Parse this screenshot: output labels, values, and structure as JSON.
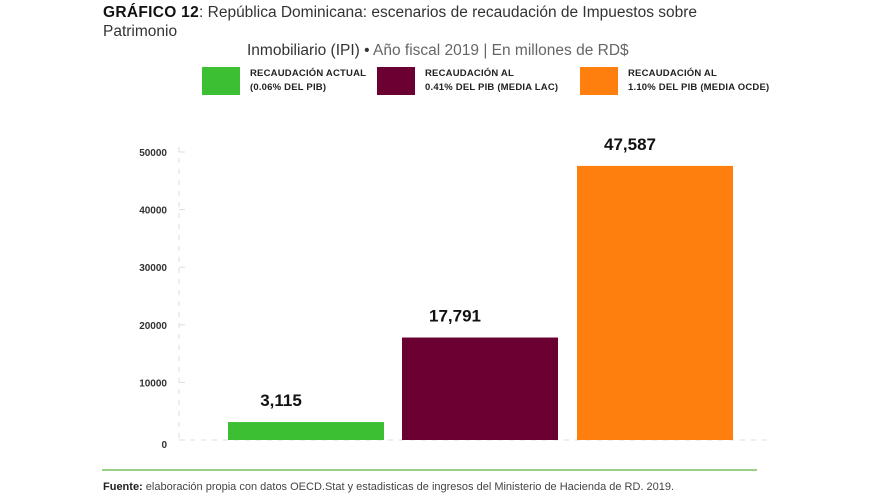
{
  "header": {
    "label": "GRÁFICO 12",
    "title_part1": ": República Dominicana: escenarios de recaudación de Impuestos sobre Patrimonio",
    "title_part2": "Inmobiliario (IPI) •",
    "subtitle": "Año fiscal 2019 | En millones de RD$"
  },
  "legend": [
    {
      "line1": "RECAUDACIÓN ACTUAL",
      "line2": "(0.06% DEL PIB)",
      "color": "#3cbf32"
    },
    {
      "line1": "RECAUDACIÓN AL",
      "line2": "0.41% DEL PIB  (MEDIA LAC)",
      "color": "#6b0033"
    },
    {
      "line1": "RECAUDACIÓN AL",
      "line2": "1.10% DEL PIB  (MEDIA OCDE)",
      "color": "#ff7f0e"
    }
  ],
  "chart_data": {
    "type": "bar",
    "categories": [
      "RECAUDACIÓN ACTUAL (0.06% DEL PIB)",
      "RECAUDACIÓN AL 0.41% DEL PIB (MEDIA LAC)",
      "RECAUDACIÓN AL 1.10% DEL PIB (MEDIA OCDE)"
    ],
    "values": [
      3115,
      17791,
      47587
    ],
    "data_labels": [
      "3,115",
      "17,791",
      "47,587"
    ],
    "colors": [
      "#3cbf32",
      "#6b0033",
      "#ff7f0e"
    ],
    "ylim": [
      0,
      50000
    ],
    "yticks": [
      "0",
      "10000",
      "20000",
      "30000",
      "40000",
      "50000"
    ],
    "grid": false,
    "legend_position": "top"
  },
  "footer": {
    "label": "Fuente:",
    "text": " elaboración propia con datos OECD.Stat y estadisticas de ingresos del Ministerio de Hacienda de RD. 2019."
  }
}
